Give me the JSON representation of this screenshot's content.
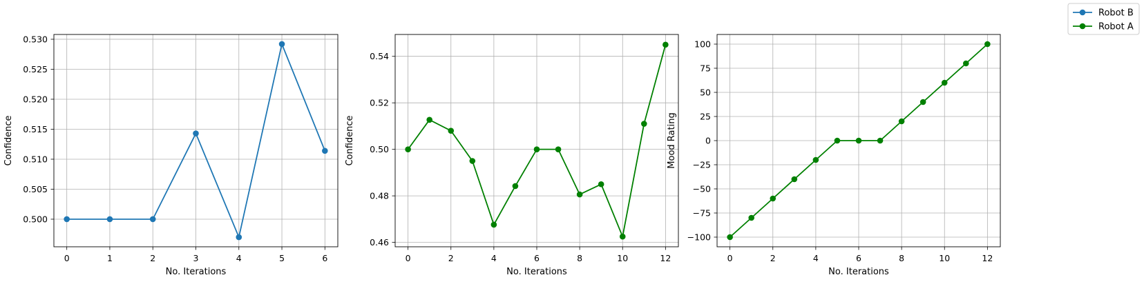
{
  "chart_data": [
    {
      "type": "line",
      "xlabel": "No. Iterations",
      "ylabel": "Confidence",
      "xlim": [
        -0.3,
        6.3
      ],
      "ylim": [
        0.4954,
        0.5308
      ],
      "xticks": [
        0,
        1,
        2,
        3,
        4,
        5,
        6
      ],
      "xtick_labels": [
        "0",
        "1",
        "2",
        "3",
        "4",
        "5",
        "6"
      ],
      "yticks": [
        0.5,
        0.505,
        0.51,
        0.515,
        0.52,
        0.525,
        0.53
      ],
      "ytick_labels": [
        "0.500",
        "0.505",
        "0.510",
        "0.515",
        "0.520",
        "0.525",
        "0.530"
      ],
      "grid": true,
      "series": [
        {
          "name": "Robot B",
          "color": "#1f77b4",
          "marker": "circle",
          "x": [
            0,
            1,
            2,
            3,
            4,
            5,
            6
          ],
          "y": [
            0.5,
            0.5,
            0.5,
            0.5143,
            0.497,
            0.5292,
            0.5114
          ]
        }
      ]
    },
    {
      "type": "line",
      "xlabel": "No. Iterations",
      "ylabel": "Confidence",
      "xlim": [
        -0.6,
        12.6
      ],
      "ylim": [
        0.4581,
        0.5494
      ],
      "xticks": [
        0,
        2,
        4,
        6,
        8,
        10,
        12
      ],
      "xtick_labels": [
        "0",
        "2",
        "4",
        "6",
        "8",
        "10",
        "12"
      ],
      "yticks": [
        0.46,
        0.48,
        0.5,
        0.52,
        0.54
      ],
      "ytick_labels": [
        "0.46",
        "0.48",
        "0.50",
        "0.52",
        "0.54"
      ],
      "grid": true,
      "series": [
        {
          "name": "Robot A",
          "color": "#008000",
          "marker": "circle",
          "x": [
            0,
            1,
            2,
            3,
            4,
            5,
            6,
            7,
            8,
            9,
            10,
            11,
            12
          ],
          "y": [
            0.5,
            0.5127,
            0.508,
            0.495,
            0.4676,
            0.4842,
            0.5,
            0.5,
            0.4806,
            0.485,
            0.4625,
            0.511,
            0.545
          ]
        }
      ]
    },
    {
      "type": "line",
      "xlabel": "No. Iterations",
      "ylabel": "Mood Rating",
      "xlim": [
        -0.6,
        12.6
      ],
      "ylim": [
        -110,
        110
      ],
      "xticks": [
        0,
        2,
        4,
        6,
        8,
        10,
        12
      ],
      "xtick_labels": [
        "0",
        "2",
        "4",
        "6",
        "8",
        "10",
        "12"
      ],
      "yticks": [
        -100,
        -75,
        -50,
        -25,
        0,
        25,
        50,
        75,
        100
      ],
      "ytick_labels": [
        "−100",
        "−75",
        "−50",
        "−25",
        "0",
        "25",
        "50",
        "75",
        "100"
      ],
      "grid": true,
      "series": [
        {
          "name": "Robot A",
          "color": "#008000",
          "marker": "circle",
          "x": [
            0,
            1,
            2,
            3,
            4,
            5,
            6,
            7,
            8,
            9,
            10,
            11,
            12
          ],
          "y": [
            -100,
            -80,
            -60,
            -40,
            -20,
            0,
            0,
            0,
            20,
            40,
            60,
            80,
            100
          ]
        }
      ]
    }
  ],
  "legend": {
    "position": "top-right",
    "entries": [
      {
        "label": "Robot B",
        "color": "#1f77b4"
      },
      {
        "label": "Robot A",
        "color": "#008000"
      }
    ]
  }
}
